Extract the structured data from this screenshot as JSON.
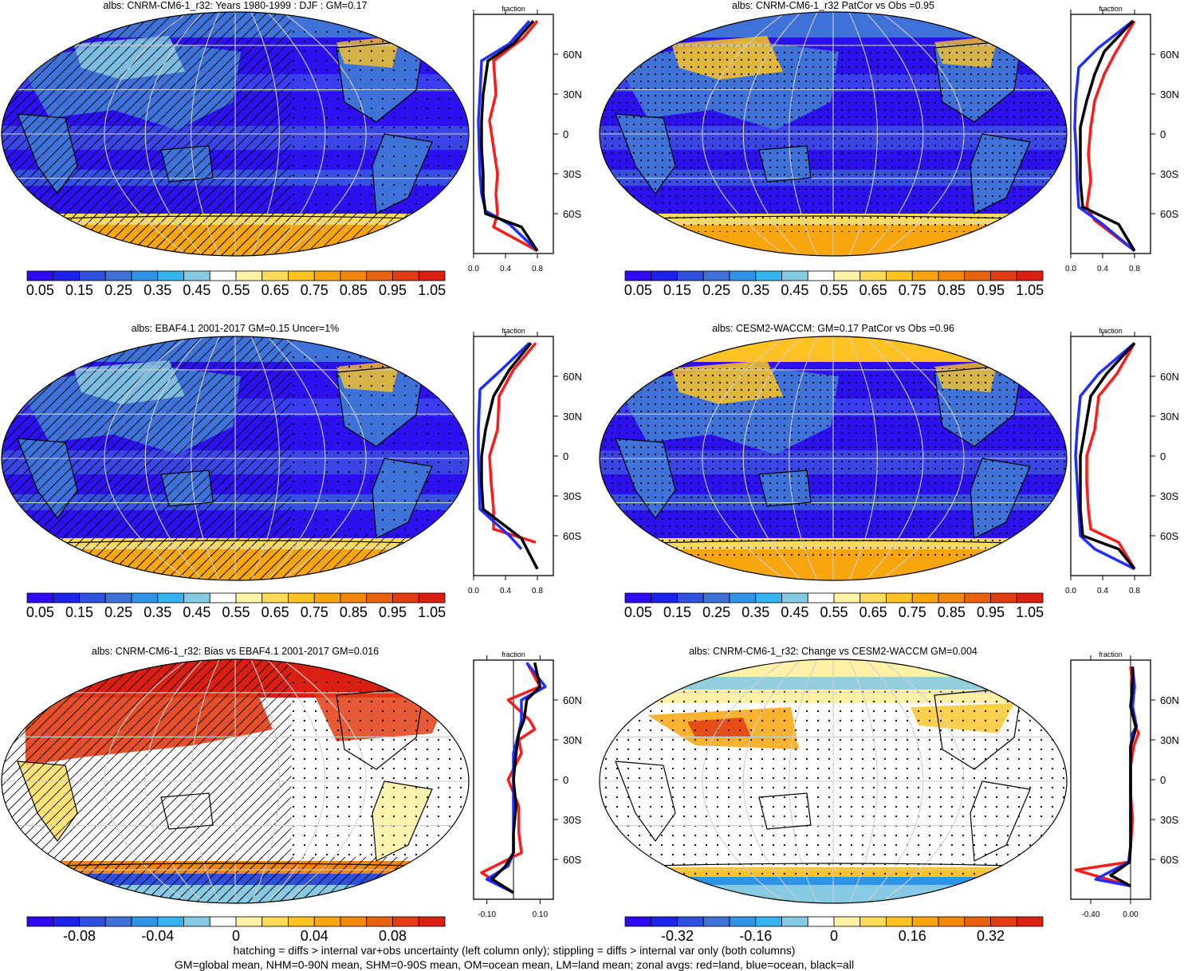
{
  "colors": {
    "palette_11": [
      "#2d0af0",
      "#1c22ea",
      "#2f50dc",
      "#3f72d8",
      "#2f93e6",
      "#36b4ef",
      "#86cbe3",
      "#ffffff",
      "#fff2a6",
      "#ffdc57",
      "#fcc322",
      "#f8a60d",
      "#f1870b",
      "#e9620f",
      "#e23d13",
      "#d81f12"
    ],
    "zonal_land": "#ff1a1a",
    "zonal_ocean": "#1f2eff",
    "zonal_all": "#000000"
  },
  "panels": [
    {
      "title": "albs: CNRM-CM6-1_r32: Years 1980-1999 : DJF : GM=0.17",
      "style": "abs",
      "overlay": "hatch",
      "colorbar_labels": [
        "0.05",
        "0.15",
        "0.25",
        "0.35",
        "0.45",
        "0.55",
        "0.65",
        "0.75",
        "0.85",
        "0.95",
        "1.05"
      ],
      "zonal_xticks": [
        "0.0",
        "0.4",
        "0.8"
      ],
      "zonal_header": "fraction",
      "lat_labels": [
        "60N",
        "30N",
        "0",
        "30S",
        "60S"
      ]
    },
    {
      "title": "albs: CNRM-CM6-1_r32 PatCor vs Obs =0.95",
      "style": "abs",
      "overlay": "stipple",
      "colorbar_labels": [
        "0.05",
        "0.15",
        "0.25",
        "0.35",
        "0.45",
        "0.55",
        "0.65",
        "0.75",
        "0.85",
        "0.95",
        "1.05"
      ],
      "zonal_xticks": [
        "0.0",
        "0.4",
        "0.8"
      ],
      "zonal_header": "fraction",
      "lat_labels": [
        "60N",
        "30N",
        "0",
        "30S",
        "60S"
      ]
    },
    {
      "title": "albs: EBAF4.1 2001-2017 GM=0.15 Uncer=1%",
      "style": "abs",
      "overlay": "hatch",
      "colorbar_labels": [
        "0.05",
        "0.15",
        "0.25",
        "0.35",
        "0.45",
        "0.55",
        "0.65",
        "0.75",
        "0.85",
        "0.95",
        "1.05"
      ],
      "zonal_xticks": [
        "0.0",
        "0.4",
        "0.8"
      ],
      "zonal_header": "fraction",
      "lat_labels": [
        "60N",
        "30N",
        "0",
        "30S",
        "60S"
      ]
    },
    {
      "title": "albs: CESM2-WACCM: GM=0.17 PatCor vs Obs =0.96",
      "style": "abs",
      "overlay": "stipple",
      "colorbar_labels": [
        "0.05",
        "0.15",
        "0.25",
        "0.35",
        "0.45",
        "0.55",
        "0.65",
        "0.75",
        "0.85",
        "0.95",
        "1.05"
      ],
      "zonal_xticks": [
        "0.0",
        "0.4",
        "0.8"
      ],
      "zonal_header": "fraction",
      "lat_labels": [
        "60N",
        "30N",
        "0",
        "30S",
        "60S"
      ]
    },
    {
      "title": "albs: CNRM-CM6-1_r32: Bias vs EBAF4.1 2001-2017 GM=0.016",
      "style": "bias",
      "overlay": "hatch",
      "colorbar_labels": [
        "-0.08",
        "-0.04",
        "0",
        "0.04",
        "0.08"
      ],
      "zonal_xticks": [
        "-0.10",
        "0.10"
      ],
      "zonal_header": "fraction",
      "lat_labels": [
        "60N",
        "30N",
        "0",
        "30S",
        "60S"
      ]
    },
    {
      "title": "albs: CNRM-CM6-1_r32: Change vs CESM2-WACCM GM=0.004",
      "style": "change",
      "overlay": "stipple",
      "colorbar_labels": [
        "-0.32",
        "-0.16",
        "0",
        "0.16",
        "0.32"
      ],
      "zonal_xticks": [
        "-0.40",
        "0.00"
      ],
      "zonal_header": "fraction",
      "lat_labels": [
        "60N",
        "30N",
        "0",
        "30S",
        "60S"
      ]
    }
  ],
  "chart_data": [
    {
      "type": "line",
      "title": "albs: CNRM-CM6-1_r32: Years 1980-1999 : DJF : GM=0.17",
      "xlabel": "fraction",
      "ylabel": "",
      "xlim": [
        0,
        1
      ],
      "ylim": [
        -90,
        90
      ],
      "x_ticks": [
        "0.0",
        "0.4",
        "0.8"
      ],
      "y_ticks": [
        "60N",
        "30N",
        "0",
        "30S",
        "60S"
      ],
      "series": [
        {
          "name": "red=land",
          "x": [
            0.8,
            0.62,
            0.25,
            0.28,
            0.2,
            0.25,
            0.3,
            0.28,
            0.3,
            0.25,
            0.8
          ],
          "y": [
            85,
            72,
            55,
            30,
            10,
            -10,
            -30,
            -45,
            -60,
            -70,
            -88
          ]
        },
        {
          "name": "blue=ocean",
          "x": [
            0.7,
            0.45,
            0.1,
            0.08,
            0.06,
            0.07,
            0.08,
            0.1,
            0.15,
            0.45,
            0.8
          ],
          "y": [
            85,
            68,
            55,
            30,
            10,
            -10,
            -30,
            -45,
            -58,
            -68,
            -88
          ]
        },
        {
          "name": "black=all",
          "x": [
            0.75,
            0.5,
            0.18,
            0.12,
            0.1,
            0.1,
            0.12,
            0.12,
            0.15,
            0.6,
            0.8
          ],
          "y": [
            85,
            68,
            55,
            30,
            10,
            -10,
            -30,
            -45,
            -60,
            -70,
            -88
          ]
        }
      ]
    },
    {
      "type": "line",
      "title": "albs: CNRM-CM6-1_r32 PatCor vs Obs =0.95",
      "xlabel": "fraction",
      "ylabel": "",
      "xlim": [
        0,
        1
      ],
      "ylim": [
        -90,
        90
      ],
      "x_ticks": [
        "0.0",
        "0.4",
        "0.8"
      ],
      "y_ticks": [
        "60N",
        "30N",
        "0",
        "30S",
        "60S"
      ],
      "series": [
        {
          "name": "red=land",
          "x": [
            0.8,
            0.55,
            0.42,
            0.3,
            0.25,
            0.22,
            0.25,
            0.2,
            0.3,
            0.8
          ],
          "y": [
            85,
            60,
            45,
            25,
            5,
            -15,
            -35,
            -55,
            -65,
            -88
          ]
        },
        {
          "name": "blue=ocean",
          "x": [
            0.78,
            0.35,
            0.1,
            0.06,
            0.05,
            0.07,
            0.08,
            0.1,
            0.4,
            0.8
          ],
          "y": [
            85,
            65,
            50,
            25,
            5,
            -15,
            -35,
            -55,
            -68,
            -88
          ]
        },
        {
          "name": "black=all",
          "x": [
            0.78,
            0.42,
            0.3,
            0.2,
            0.12,
            0.12,
            0.12,
            0.15,
            0.6,
            0.8
          ],
          "y": [
            85,
            62,
            45,
            25,
            5,
            -15,
            -35,
            -55,
            -68,
            -88
          ]
        }
      ]
    },
    {
      "type": "line",
      "title": "albs: EBAF4.1 2001-2017 GM=0.15 Uncer=1%",
      "xlabel": "fraction",
      "ylabel": "",
      "xlim": [
        0,
        1
      ],
      "ylim": [
        -90,
        90
      ],
      "x_ticks": [
        "0.0",
        "0.4",
        "0.8"
      ],
      "y_ticks": [
        "60N",
        "30N",
        "0",
        "30S",
        "60S"
      ],
      "series": [
        {
          "name": "red=land",
          "x": [
            0.78,
            0.5,
            0.32,
            0.3,
            0.2,
            0.22,
            0.25,
            0.25,
            0.78
          ],
          "y": [
            85,
            65,
            45,
            20,
            0,
            -20,
            -40,
            -55,
            -65
          ]
        },
        {
          "name": "blue=ocean",
          "x": [
            0.7,
            0.35,
            0.08,
            0.06,
            0.06,
            0.07,
            0.08,
            0.45,
            0.6
          ],
          "y": [
            85,
            65,
            50,
            20,
            0,
            -20,
            -40,
            -60,
            -70
          ]
        },
        {
          "name": "black=all",
          "x": [
            0.72,
            0.45,
            0.25,
            0.15,
            0.1,
            0.1,
            0.12,
            0.6,
            0.8
          ],
          "y": [
            85,
            65,
            45,
            20,
            0,
            -20,
            -40,
            -62,
            -85
          ]
        }
      ]
    },
    {
      "type": "line",
      "title": "albs: CESM2-WACCM: GM=0.17 PatCor vs Obs =0.96",
      "xlabel": "fraction",
      "ylabel": "",
      "xlim": [
        0,
        1
      ],
      "ylim": [
        -90,
        90
      ],
      "x_ticks": [
        "0.0",
        "0.4",
        "0.8"
      ],
      "y_ticks": [
        "60N",
        "30N",
        "0",
        "30S",
        "60S"
      ],
      "series": [
        {
          "name": "red=land",
          "x": [
            0.8,
            0.58,
            0.35,
            0.3,
            0.2,
            0.2,
            0.22,
            0.25,
            0.6,
            0.8
          ],
          "y": [
            85,
            62,
            45,
            20,
            0,
            -20,
            -40,
            -55,
            -65,
            -85
          ]
        },
        {
          "name": "blue=ocean",
          "x": [
            0.8,
            0.35,
            0.12,
            0.08,
            0.06,
            0.08,
            0.1,
            0.12,
            0.3,
            0.8
          ],
          "y": [
            85,
            62,
            45,
            20,
            0,
            -20,
            -40,
            -60,
            -70,
            -85
          ]
        },
        {
          "name": "black=all",
          "x": [
            0.8,
            0.45,
            0.25,
            0.18,
            0.12,
            0.12,
            0.12,
            0.15,
            0.6,
            0.8
          ],
          "y": [
            85,
            62,
            45,
            20,
            0,
            -20,
            -40,
            -60,
            -70,
            -85
          ]
        }
      ]
    },
    {
      "type": "line",
      "title": "albs: CNRM-CM6-1_r32: Bias vs EBAF4.1 2001-2017 GM=0.016",
      "xlabel": "fraction",
      "ylabel": "",
      "xlim": [
        -0.15,
        0.15
      ],
      "ylim": [
        -90,
        90
      ],
      "x_ticks": [
        "-0.10",
        "0.10"
      ],
      "y_ticks": [
        "60N",
        "30N",
        "0",
        "30S",
        "60S"
      ],
      "series": [
        {
          "name": "red=land",
          "x": [
            0.05,
            0.1,
            -0.02,
            0.06,
            0.08,
            0.02,
            0.03,
            -0.02,
            0.02,
            0.02,
            0.03,
            -0.12,
            0.0
          ],
          "y": [
            88,
            70,
            60,
            45,
            38,
            30,
            20,
            0,
            -20,
            -40,
            -55,
            -70,
            -85
          ]
        },
        {
          "name": "blue=ocean",
          "x": [
            0.05,
            0.12,
            0.03,
            0.03,
            0.02,
            0.0,
            0.0,
            0.0,
            0.0,
            0.0,
            -0.02,
            -0.1,
            0.0
          ],
          "y": [
            88,
            70,
            60,
            45,
            35,
            20,
            0,
            -20,
            -40,
            -55,
            -65,
            -75,
            -85
          ]
        },
        {
          "name": "black=all",
          "x": [
            0.08,
            0.1,
            0.05,
            0.04,
            0.02,
            0.01,
            0.0,
            0.01,
            0.0,
            0.0,
            -0.03,
            -0.08,
            0.0
          ],
          "y": [
            88,
            70,
            60,
            45,
            35,
            20,
            0,
            -20,
            -40,
            -55,
            -65,
            -75,
            -85
          ]
        }
      ]
    },
    {
      "type": "line",
      "title": "albs: CNRM-CM6-1_r32: Change vs CESM2-WACCM GM=0.004",
      "xlabel": "fraction",
      "ylabel": "",
      "xlim": [
        -0.6,
        0.2
      ],
      "ylim": [
        -90,
        90
      ],
      "x_ticks": [
        "-0.40",
        "0.00"
      ],
      "y_ticks": [
        "60N",
        "30N",
        "0",
        "30S",
        "60S"
      ],
      "series": [
        {
          "name": "red=land",
          "x": [
            0.0,
            0.02,
            0.0,
            0.05,
            0.08,
            0.03,
            0.0,
            0.0,
            0.02,
            0.0,
            -0.02,
            -0.55,
            0.0
          ],
          "y": [
            85,
            70,
            55,
            40,
            35,
            25,
            10,
            -10,
            -30,
            -50,
            -62,
            -68,
            -80
          ]
        },
        {
          "name": "blue=ocean",
          "x": [
            0.02,
            0.04,
            0.02,
            0.06,
            0.02,
            0.0,
            0.0,
            0.0,
            0.0,
            0.0,
            -0.02,
            -0.35,
            0.0
          ],
          "y": [
            85,
            70,
            55,
            40,
            35,
            25,
            10,
            -10,
            -30,
            -50,
            -62,
            -75,
            -80
          ]
        },
        {
          "name": "black=all",
          "x": [
            0.02,
            0.02,
            0.0,
            0.05,
            0.04,
            0.0,
            0.0,
            0.0,
            0.0,
            0.0,
            -0.01,
            -0.2,
            0.0
          ],
          "y": [
            85,
            70,
            55,
            40,
            35,
            25,
            10,
            -10,
            -30,
            -50,
            -62,
            -72,
            -80
          ]
        }
      ]
    }
  ],
  "footer": {
    "line1": "hatching = diffs > internal var+obs uncertainty (left column only); stippling = diffs > internal var only (both columns)",
    "line2": "GM=global mean, NHM=0-90N mean, SHM=0-90S mean, OM=ocean mean, LM=land mean; zonal avgs: red=land, blue=ocean, black=all"
  }
}
